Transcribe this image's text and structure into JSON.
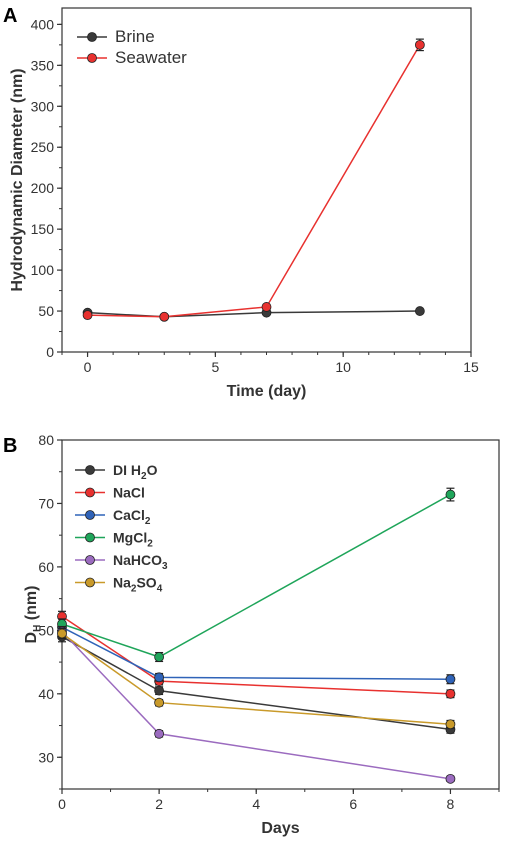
{
  "chart_data": [
    {
      "panel": "A",
      "type": "line",
      "xlabel": "Time (day)",
      "ylabel": "Hydrodynamic Diameter (nm)",
      "xlim": [
        -1,
        15
      ],
      "ylim": [
        0,
        420
      ],
      "xticks": [
        "0",
        "5",
        "10",
        "15"
      ],
      "yticks": [
        "0",
        "50",
        "100",
        "150",
        "200",
        "250",
        "300",
        "350",
        "400"
      ],
      "legend_position": "top-left",
      "series": [
        {
          "name": "Brine",
          "color": "#3a3a3a",
          "x": [
            0,
            3,
            7,
            13
          ],
          "y": [
            48,
            43,
            48,
            50
          ],
          "err": [
            2,
            2,
            2,
            2
          ]
        },
        {
          "name": "Seawater",
          "color": "#e8312f",
          "x": [
            0,
            3,
            7,
            13
          ],
          "y": [
            45,
            43,
            55,
            375
          ],
          "err": [
            2,
            2,
            3,
            7
          ]
        }
      ]
    },
    {
      "panel": "B",
      "type": "line",
      "xlabel": "Days",
      "ylabel_main": "D",
      "ylabel_sub": "H",
      "ylabel_tail": " (nm)",
      "xlim": [
        0,
        9
      ],
      "ylim": [
        25,
        80
      ],
      "xticks": [
        "0",
        "2",
        "4",
        "6",
        "8"
      ],
      "yticks": [
        "30",
        "40",
        "50",
        "60",
        "70",
        "80"
      ],
      "legend_position": "top-left",
      "series": [
        {
          "name": "DI H2O",
          "label_parts": [
            "DI H",
            "2",
            "O"
          ],
          "color": "#3a3a3a",
          "x": [
            0,
            2,
            8
          ],
          "y": [
            49.0,
            40.5,
            34.4
          ],
          "err": [
            0.8,
            0.6,
            0.6
          ]
        },
        {
          "name": "NaCl",
          "label_parts": [
            "NaCl",
            "",
            ""
          ],
          "color": "#e8312f",
          "x": [
            0,
            2,
            8
          ],
          "y": [
            52.2,
            42.0,
            40.0
          ],
          "err": [
            0.8,
            0.6,
            0.6
          ]
        },
        {
          "name": "CaCl2",
          "label_parts": [
            "CaCl",
            "2",
            ""
          ],
          "color": "#2f63b8",
          "x": [
            0,
            2,
            8
          ],
          "y": [
            50.5,
            42.6,
            42.3
          ],
          "err": [
            0.8,
            0.6,
            0.7
          ]
        },
        {
          "name": "MgCl2",
          "label_parts": [
            "MgCl",
            "2",
            ""
          ],
          "color": "#1fa55a",
          "x": [
            0,
            2,
            8
          ],
          "y": [
            51.0,
            45.8,
            71.4
          ],
          "err": [
            0.8,
            0.7,
            1.0
          ]
        },
        {
          "name": "NaHCO3",
          "label_parts": [
            "NaHCO",
            "3",
            ""
          ],
          "color": "#9b6bbf",
          "x": [
            0,
            2,
            8
          ],
          "y": [
            49.8,
            33.7,
            26.6
          ],
          "err": [
            0.8,
            0.5,
            0.4
          ]
        },
        {
          "name": "Na2SO4",
          "label_parts": [
            "Na",
            "2",
            "SO"
          ],
          "label_tail_sub": "4",
          "color": "#c99a2a",
          "x": [
            0,
            2,
            8
          ],
          "y": [
            49.5,
            38.6,
            35.2
          ],
          "err": [
            0.8,
            0.5,
            0.6
          ]
        }
      ]
    }
  ],
  "panel_labels": [
    "A",
    "B"
  ]
}
